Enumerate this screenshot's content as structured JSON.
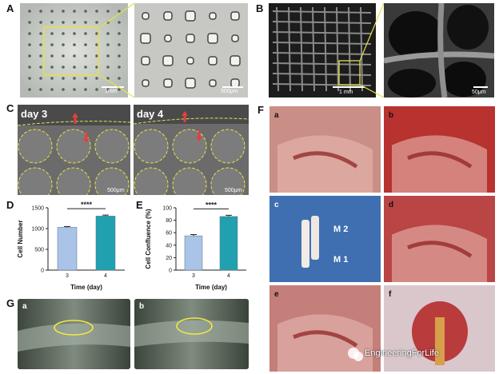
{
  "panels": {
    "A": {
      "label": "A",
      "scale_left": "1mm",
      "scale_right": "500μm"
    },
    "B": {
      "label": "B",
      "scale_left": "1 mm",
      "scale_right": "50μm"
    },
    "C": {
      "label": "C",
      "day_left": "day 3",
      "day_right": "day 4",
      "scale_left": "500μm",
      "scale_right": "500μm"
    },
    "D": {
      "label": "D"
    },
    "E": {
      "label": "E"
    },
    "F": {
      "label": "F",
      "subs": [
        "a",
        "b",
        "c",
        "d",
        "e",
        "f"
      ],
      "tooth_m2": "M 2",
      "tooth_m1": "M 1"
    },
    "G": {
      "label": "G",
      "subs": [
        "a",
        "b"
      ]
    }
  },
  "watermark": "EngineeringForLife",
  "chart_data": [
    {
      "type": "bar",
      "categories": [
        "3",
        "4"
      ],
      "values": [
        1030,
        1300
      ],
      "errors": [
        20,
        25
      ],
      "xlabel": "Time (day)",
      "ylabel": "Cell Number",
      "ylim": [
        0,
        1500
      ],
      "yticks": [
        "0",
        "500",
        "1000",
        "1500"
      ],
      "significance": "****",
      "colors": [
        "#a9c4e6",
        "#21a1b0"
      ]
    },
    {
      "type": "bar",
      "categories": [
        "3",
        "4"
      ],
      "values": [
        55,
        86
      ],
      "errors": [
        2,
        2
      ],
      "xlabel": "Time (day)",
      "ylabel": "Cell Confluence (%)",
      "ylim": [
        0,
        100
      ],
      "yticks": [
        "0",
        "20",
        "40",
        "60",
        "80",
        "100"
      ],
      "significance": "****",
      "colors": [
        "#a9c4e6",
        "#21a1b0"
      ]
    }
  ]
}
